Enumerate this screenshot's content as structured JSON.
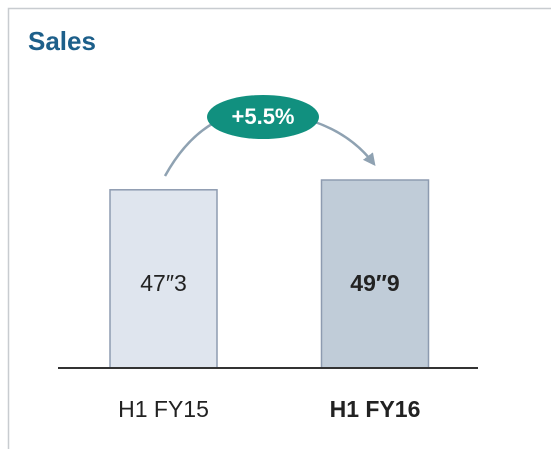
{
  "chart_data": {
    "type": "bar",
    "title": "Sales",
    "categories": [
      "H1 FY15",
      "H1 FY16"
    ],
    "values": [
      47.3,
      49.9
    ],
    "value_labels": [
      "47″3",
      "49″9"
    ],
    "colors": [
      "#dfe5ee",
      "#c0ccd8"
    ],
    "annotation": "+5.5%"
  }
}
